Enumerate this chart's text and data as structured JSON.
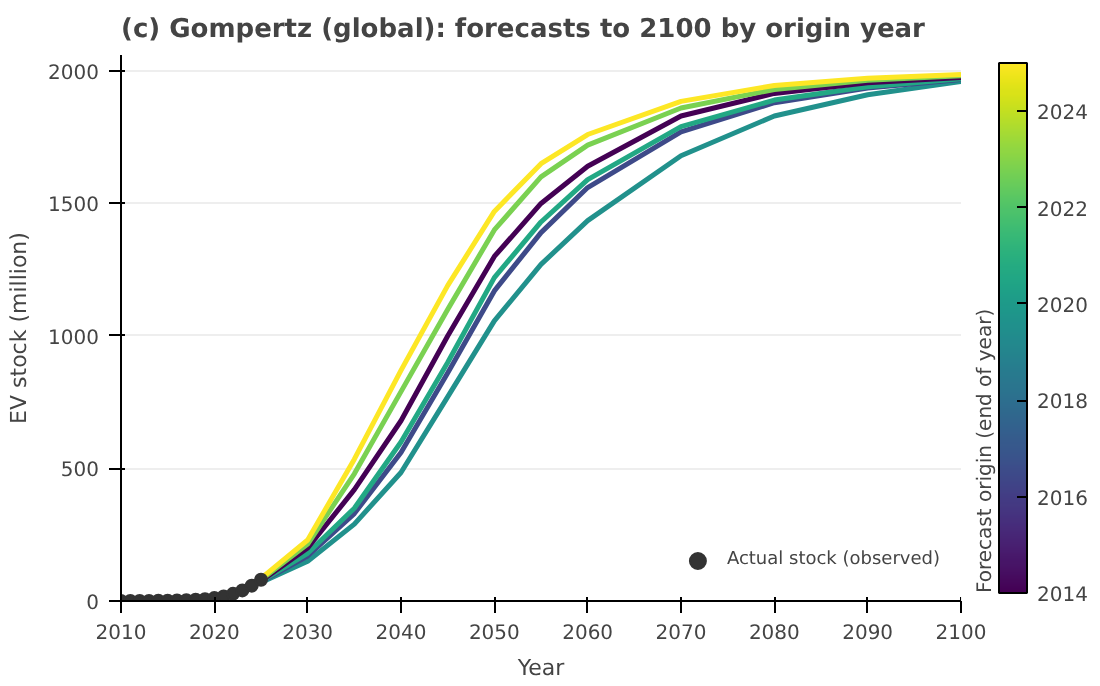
{
  "chart_data": {
    "type": "line",
    "title": "(c) Gompertz (global): forecasts to 2100 by origin year",
    "xlabel": "Year",
    "ylabel": "EV stock (million)",
    "clabel": "Forecast origin (end of year)",
    "xlim": [
      2010,
      2100
    ],
    "xticks": [
      2010,
      2020,
      2030,
      2040,
      2050,
      2060,
      2070,
      2080,
      2090,
      2100
    ],
    "ylim": [
      0,
      2060
    ],
    "yticks": [
      0,
      500,
      1000,
      1500,
      2000
    ],
    "clim": [
      2014,
      2025
    ],
    "cticks": [
      2014,
      2016,
      2018,
      2020,
      2022,
      2024
    ],
    "grid": "y",
    "legend": "bottom right",
    "line_style": "solid",
    "x": [
      2025,
      2030,
      2035,
      2040,
      2045,
      2050,
      2055,
      2060,
      2070,
      2080,
      2090,
      2100
    ],
    "series": [
      {
        "color": "#21918c",
        "values": [
          70,
          150,
          290,
          485,
          770,
          1057,
          1270,
          1435,
          1680,
          1830,
          1910,
          1960
        ]
      },
      {
        "color": "#3e4a89",
        "values": [
          72,
          170,
          330,
          560,
          860,
          1170,
          1390,
          1560,
          1770,
          1880,
          1935,
          1968
        ]
      },
      {
        "color": "#22a884",
        "values": [
          74,
          180,
          350,
          600,
          900,
          1220,
          1430,
          1590,
          1790,
          1890,
          1940,
          1970
        ]
      },
      {
        "color": "#440154",
        "values": [
          76,
          200,
          420,
          680,
          1000,
          1300,
          1500,
          1640,
          1830,
          1915,
          1955,
          1975
        ]
      },
      {
        "color": "#7ad151",
        "values": [
          80,
          215,
          480,
          790,
          1100,
          1400,
          1600,
          1720,
          1860,
          1930,
          1965,
          1982
        ]
      },
      {
        "color": "#fde725",
        "values": [
          85,
          230,
          535,
          870,
          1190,
          1470,
          1650,
          1760,
          1885,
          1945,
          1972,
          1986
        ]
      },
      {
        "type": "scatter",
        "name": "Actual stock (observed)",
        "color": "#333333",
        "marker": "circle",
        "x": [
          2010,
          2011,
          2012,
          2013,
          2014,
          2015,
          2016,
          2017,
          2018,
          2019,
          2020,
          2021,
          2022,
          2023,
          2024,
          2025
        ],
        "values": [
          0,
          0,
          0,
          0,
          1,
          1,
          2,
          3,
          5,
          7,
          11,
          17,
          27,
          40,
          58,
          80
        ]
      }
    ]
  }
}
